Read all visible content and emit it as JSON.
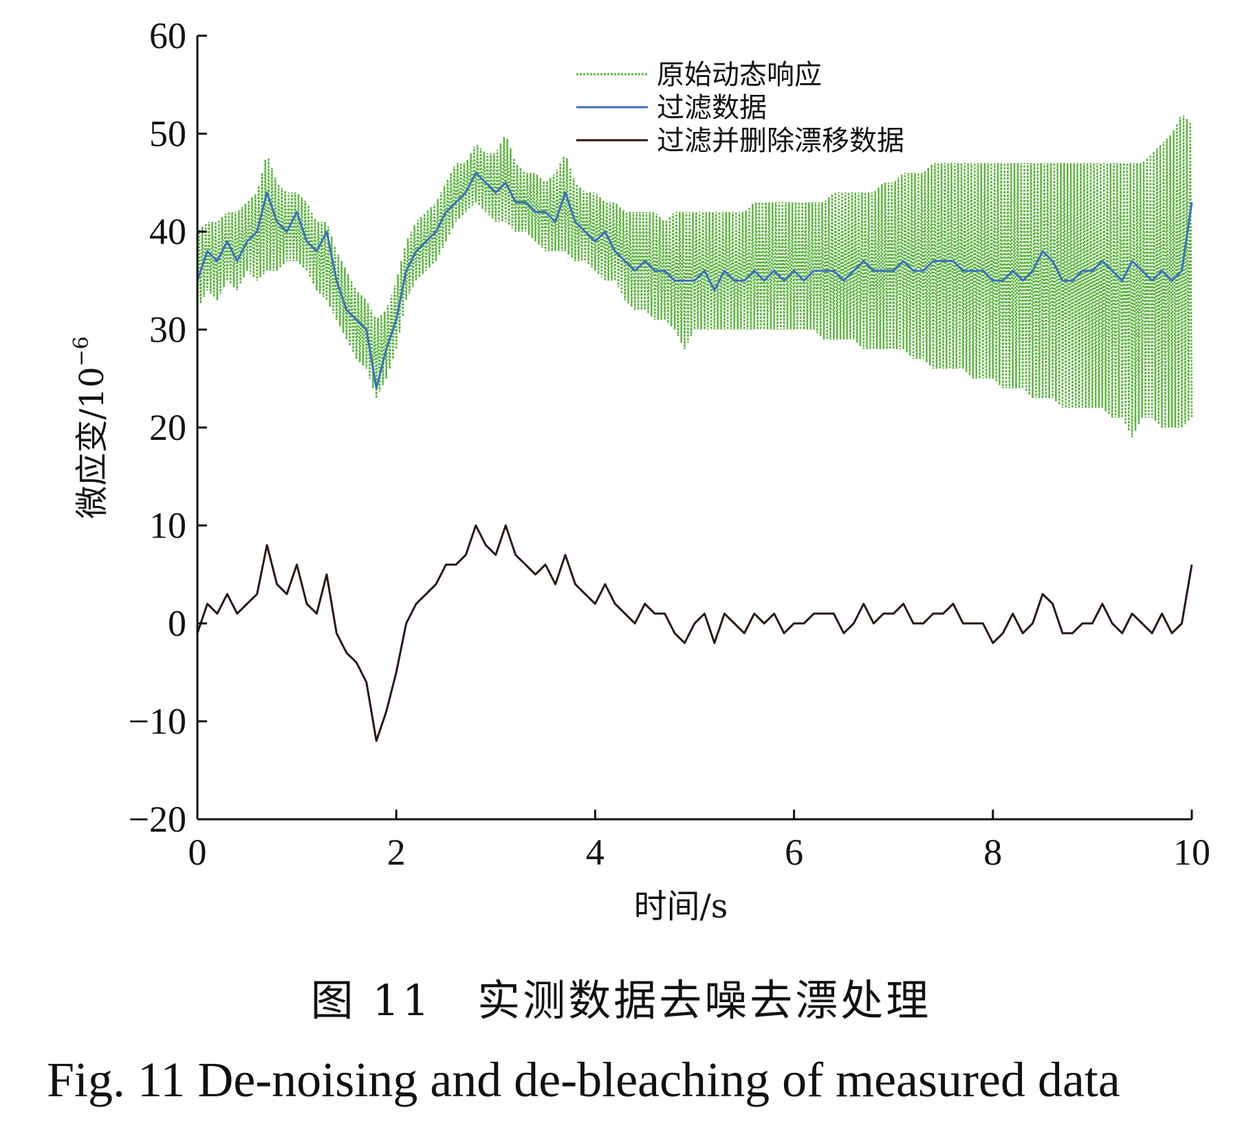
{
  "chart_data": {
    "type": "line",
    "xlabel": "时间/s",
    "ylabel": "微应变/10",
    "ylabel_exponent": "−6",
    "xlim": [
      0,
      10
    ],
    "ylim": [
      -20,
      60
    ],
    "x_ticks": [
      "0",
      "2",
      "4",
      "6",
      "8",
      "10"
    ],
    "y_ticks": [
      "−20",
      "−10",
      "0",
      "10",
      "20",
      "30",
      "40",
      "50",
      "60"
    ],
    "grid": false,
    "legend_position": "top-right",
    "series": [
      {
        "name": "原始动态响应",
        "color": "#5ab43c",
        "style": "dotted",
        "x": [
          0,
          0.1,
          0.2,
          0.3,
          0.4,
          0.5,
          0.6,
          0.7,
          0.8,
          0.9,
          1.0,
          1.1,
          1.2,
          1.3,
          1.4,
          1.5,
          1.6,
          1.7,
          1.8,
          1.9,
          2.0,
          2.1,
          2.2,
          2.3,
          2.4,
          2.5,
          2.6,
          2.7,
          2.8,
          2.9,
          3.0,
          3.1,
          3.2,
          3.3,
          3.4,
          3.5,
          3.6,
          3.7,
          3.8,
          3.9,
          4.0,
          4.1,
          4.2,
          4.3,
          4.4,
          4.5,
          4.6,
          4.7,
          4.8,
          4.9,
          5.0,
          5.1,
          5.2,
          5.3,
          5.4,
          5.5,
          5.6,
          5.7,
          5.8,
          5.9,
          6.0,
          6.1,
          6.2,
          6.3,
          6.4,
          6.5,
          6.6,
          6.7,
          6.8,
          6.9,
          7.0,
          7.1,
          7.2,
          7.3,
          7.4,
          7.5,
          7.6,
          7.7,
          7.8,
          7.9,
          8.0,
          8.1,
          8.2,
          8.3,
          8.4,
          8.5,
          8.6,
          8.7,
          8.8,
          8.9,
          9.0,
          9.1,
          9.2,
          9.3,
          9.4,
          9.5,
          9.6,
          9.7,
          9.8,
          9.9,
          10.0
        ],
        "y_min": [
          32,
          34,
          33,
          35,
          34,
          36,
          35,
          36,
          36,
          37,
          37,
          36,
          34,
          33,
          31,
          29,
          27,
          26,
          23,
          25,
          28,
          33,
          35,
          36,
          37,
          39,
          41,
          42,
          43,
          42,
          41,
          41,
          40,
          40,
          39,
          38,
          38,
          38,
          37,
          37,
          36,
          35,
          35,
          33,
          32,
          32,
          31,
          31,
          30,
          28,
          30,
          30,
          30,
          30,
          30,
          30,
          30,
          30,
          30,
          30,
          30,
          30,
          30,
          29,
          29,
          29,
          29,
          28,
          28,
          28,
          28,
          28,
          27,
          27,
          26,
          26,
          26,
          26,
          25,
          25,
          25,
          24,
          24,
          24,
          23,
          23,
          23,
          22,
          22,
          22,
          22,
          22,
          21,
          21,
          19,
          21,
          21,
          20,
          20,
          20,
          21
        ],
        "y_max": [
          40,
          41,
          41,
          42,
          42,
          43,
          44,
          48,
          45,
          44,
          44,
          43,
          41,
          41,
          38,
          36,
          34,
          33,
          31,
          32,
          35,
          39,
          41,
          42,
          43,
          45,
          47,
          47,
          49,
          48,
          48,
          50,
          47,
          46,
          46,
          45,
          46,
          48,
          45,
          44,
          44,
          43,
          43,
          42,
          42,
          42,
          42,
          41,
          42,
          42,
          42,
          42,
          42,
          42,
          42,
          42,
          43,
          43,
          43,
          43,
          43,
          43,
          43,
          43,
          44,
          44,
          44,
          44,
          44,
          45,
          45,
          46,
          46,
          46,
          47,
          47,
          47,
          47,
          47,
          47,
          47,
          47,
          47,
          47,
          47,
          47,
          47,
          47,
          47,
          47,
          47,
          47,
          47,
          47,
          47,
          47,
          48,
          49,
          50,
          52,
          51
        ]
      },
      {
        "name": "过滤数据",
        "color": "#3a6fc0",
        "style": "solid",
        "x": [
          0,
          0.1,
          0.2,
          0.3,
          0.4,
          0.5,
          0.6,
          0.7,
          0.8,
          0.9,
          1.0,
          1.1,
          1.2,
          1.3,
          1.4,
          1.5,
          1.6,
          1.7,
          1.8,
          1.9,
          2.0,
          2.1,
          2.2,
          2.3,
          2.4,
          2.5,
          2.6,
          2.7,
          2.8,
          2.9,
          3.0,
          3.1,
          3.2,
          3.3,
          3.4,
          3.5,
          3.6,
          3.7,
          3.8,
          3.9,
          4.0,
          4.1,
          4.2,
          4.3,
          4.4,
          4.5,
          4.6,
          4.7,
          4.8,
          4.9,
          5.0,
          5.1,
          5.2,
          5.3,
          5.4,
          5.5,
          5.6,
          5.7,
          5.8,
          5.9,
          6.0,
          6.1,
          6.2,
          6.3,
          6.4,
          6.5,
          6.6,
          6.7,
          6.8,
          6.9,
          7.0,
          7.1,
          7.2,
          7.3,
          7.4,
          7.5,
          7.6,
          7.7,
          7.8,
          7.9,
          8.0,
          8.1,
          8.2,
          8.3,
          8.4,
          8.5,
          8.6,
          8.7,
          8.8,
          8.9,
          9.0,
          9.1,
          9.2,
          9.3,
          9.4,
          9.5,
          9.6,
          9.7,
          9.8,
          9.9,
          10.0
        ],
        "y": [
          35,
          38,
          37,
          39,
          37,
          39,
          40,
          44,
          41,
          40,
          42,
          39,
          38,
          40,
          35,
          32,
          31,
          30,
          24,
          28,
          31,
          36,
          38,
          39,
          40,
          42,
          43,
          44,
          46,
          45,
          44,
          45,
          43,
          43,
          42,
          42,
          41,
          44,
          41,
          40,
          39,
          40,
          38,
          37,
          36,
          37,
          36,
          36,
          35,
          35,
          35,
          36,
          34,
          36,
          35,
          35,
          36,
          35,
          36,
          35,
          36,
          35,
          36,
          36,
          36,
          35,
          36,
          37,
          36,
          36,
          36,
          37,
          36,
          36,
          37,
          37,
          37,
          36,
          36,
          36,
          35,
          35,
          36,
          35,
          36,
          38,
          37,
          35,
          35,
          36,
          36,
          37,
          36,
          35,
          37,
          36,
          35,
          36,
          35,
          36,
          43
        ]
      },
      {
        "name": "过滤并删除漂移数据",
        "color": "#2a1612",
        "style": "solid",
        "x": [
          0,
          0.1,
          0.2,
          0.3,
          0.4,
          0.5,
          0.6,
          0.7,
          0.8,
          0.9,
          1.0,
          1.1,
          1.2,
          1.3,
          1.4,
          1.5,
          1.6,
          1.7,
          1.8,
          1.9,
          2.0,
          2.1,
          2.2,
          2.3,
          2.4,
          2.5,
          2.6,
          2.7,
          2.8,
          2.9,
          3.0,
          3.1,
          3.2,
          3.3,
          3.4,
          3.5,
          3.6,
          3.7,
          3.8,
          3.9,
          4.0,
          4.1,
          4.2,
          4.3,
          4.4,
          4.5,
          4.6,
          4.7,
          4.8,
          4.9,
          5.0,
          5.1,
          5.2,
          5.3,
          5.4,
          5.5,
          5.6,
          5.7,
          5.8,
          5.9,
          6.0,
          6.1,
          6.2,
          6.3,
          6.4,
          6.5,
          6.6,
          6.7,
          6.8,
          6.9,
          7.0,
          7.1,
          7.2,
          7.3,
          7.4,
          7.5,
          7.6,
          7.7,
          7.8,
          7.9,
          8.0,
          8.1,
          8.2,
          8.3,
          8.4,
          8.5,
          8.6,
          8.7,
          8.8,
          8.9,
          9.0,
          9.1,
          9.2,
          9.3,
          9.4,
          9.5,
          9.6,
          9.7,
          9.8,
          9.9,
          10.0
        ],
        "y": [
          -1,
          2,
          1,
          3,
          1,
          2,
          3,
          8,
          4,
          3,
          6,
          2,
          1,
          5,
          -1,
          -3,
          -4,
          -6,
          -12,
          -9,
          -5,
          0,
          2,
          3,
          4,
          6,
          6,
          7,
          10,
          8,
          7,
          10,
          7,
          6,
          5,
          6,
          4,
          7,
          4,
          3,
          2,
          4,
          2,
          1,
          0,
          2,
          1,
          1,
          -1,
          -2,
          0,
          1,
          -2,
          1,
          0,
          -1,
          1,
          0,
          1,
          -1,
          0,
          0,
          1,
          1,
          1,
          -1,
          0,
          2,
          0,
          1,
          1,
          2,
          0,
          0,
          1,
          1,
          2,
          0,
          0,
          0,
          -2,
          -1,
          1,
          -1,
          0,
          3,
          2,
          -1,
          -1,
          0,
          0,
          2,
          0,
          -1,
          1,
          0,
          -1,
          1,
          -1,
          0,
          6
        ]
      }
    ]
  },
  "caption": {
    "chinese": "图 11　实测数据去噪去漂处理",
    "english": "Fig. 11  De-noising and de-bleaching of measured data"
  }
}
